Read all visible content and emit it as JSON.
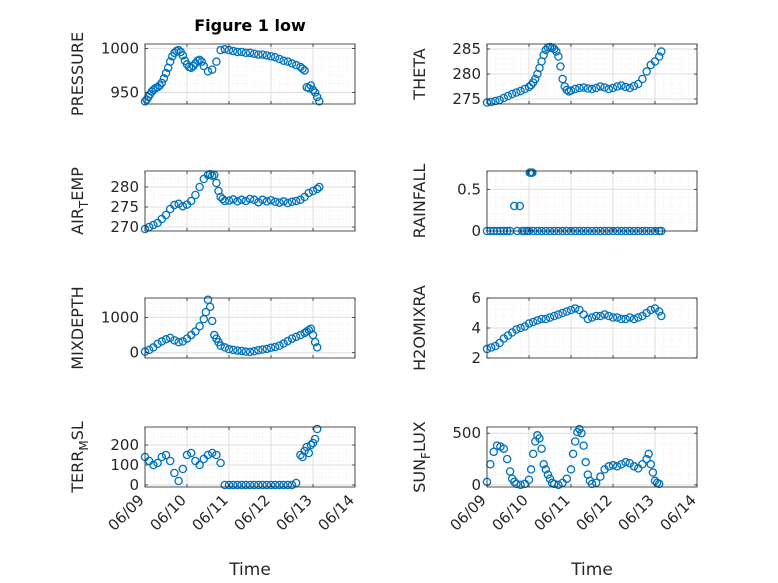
{
  "figure": {
    "title": "Figure 1 low",
    "xlabel": "Time"
  },
  "colors": {
    "marker": "#0072bd",
    "axis": "#262626",
    "grid": "#dfdfdf",
    "minor_grid": "#ececec"
  },
  "chart_data": [
    {
      "type": "scatter",
      "ylabel": "PRESSURE",
      "ylim": [
        937,
        1005
      ],
      "yticks": [
        950,
        1000
      ],
      "ytick_labels": [
        "950",
        "1000"
      ],
      "x_dates": [
        "06/09",
        "06/10",
        "06/11",
        "06/12",
        "06/13",
        "06/14"
      ],
      "xticks": [
        0,
        1,
        2,
        3,
        4,
        5
      ],
      "grid": true,
      "x": [
        0.0,
        0.04,
        0.08,
        0.12,
        0.16,
        0.2,
        0.25,
        0.3,
        0.35,
        0.4,
        0.45,
        0.5,
        0.55,
        0.6,
        0.65,
        0.7,
        0.75,
        0.8,
        0.85,
        0.9,
        0.95,
        1.0,
        1.05,
        1.1,
        1.15,
        1.2,
        1.25,
        1.3,
        1.35,
        1.4,
        1.5,
        1.6,
        1.7,
        1.8,
        1.9,
        2.0,
        2.1,
        2.2,
        2.3,
        2.4,
        2.5,
        2.6,
        2.7,
        2.8,
        2.9,
        3.0,
        3.1,
        3.2,
        3.3,
        3.4,
        3.5,
        3.6,
        3.7,
        3.75,
        3.8,
        3.85,
        3.9,
        3.95,
        4.0,
        4.05,
        4.1,
        4.15
      ],
      "y": [
        940,
        942,
        945,
        948,
        951,
        953,
        955,
        956,
        958,
        961,
        966,
        972,
        978,
        985,
        991,
        995,
        997,
        998,
        996,
        992,
        986,
        982,
        979,
        978,
        980,
        983,
        986,
        987,
        985,
        980,
        974,
        976,
        985,
        998,
        999,
        998,
        997,
        996,
        996,
        995,
        995,
        994,
        993,
        993,
        992,
        991,
        990,
        988,
        986,
        985,
        983,
        981,
        979,
        977,
        975,
        956,
        955,
        958,
        953,
        950,
        945,
        940
      ]
    },
    {
      "type": "scatter",
      "ylabel": "THETA",
      "ylim": [
        274,
        286
      ],
      "yticks": [
        275,
        280,
        285
      ],
      "ytick_labels": [
        "275",
        "280",
        "285"
      ],
      "x_dates": [
        "06/09",
        "06/10",
        "06/11",
        "06/12",
        "06/13",
        "06/14"
      ],
      "xticks": [
        0,
        1,
        2,
        3,
        4,
        5
      ],
      "grid": true,
      "x": [
        0.0,
        0.1,
        0.2,
        0.3,
        0.4,
        0.5,
        0.6,
        0.7,
        0.8,
        0.9,
        1.0,
        1.05,
        1.1,
        1.15,
        1.2,
        1.25,
        1.3,
        1.35,
        1.4,
        1.45,
        1.5,
        1.55,
        1.6,
        1.65,
        1.7,
        1.75,
        1.8,
        1.85,
        1.9,
        1.95,
        2.0,
        2.1,
        2.2,
        2.3,
        2.4,
        2.5,
        2.6,
        2.7,
        2.8,
        2.9,
        3.0,
        3.1,
        3.2,
        3.3,
        3.4,
        3.5,
        3.6,
        3.7,
        3.8,
        3.9,
        4.0,
        4.1,
        4.15
      ],
      "y": [
        274.3,
        274.4,
        274.6,
        274.8,
        275.2,
        275.6,
        276.0,
        276.3,
        276.6,
        277.0,
        277.4,
        277.8,
        278.3,
        279.0,
        280.0,
        281.2,
        282.5,
        283.8,
        284.8,
        285.3,
        285.4,
        285.2,
        285.0,
        284.5,
        283.5,
        281.5,
        279.0,
        277.5,
        276.8,
        276.5,
        276.7,
        277.0,
        277.2,
        277.3,
        277.1,
        277.0,
        277.2,
        277.5,
        277.3,
        277.0,
        277.2,
        277.5,
        277.7,
        277.4,
        277.2,
        277.6,
        278.0,
        279.0,
        280.5,
        281.8,
        282.5,
        283.5,
        284.5
      ]
    },
    {
      "type": "scatter",
      "ylabel": "AIR_TEMP",
      "ylabel_parts": [
        "AIR",
        "T",
        "EMP"
      ],
      "ylim": [
        269,
        284
      ],
      "yticks": [
        270,
        275,
        280
      ],
      "ytick_labels": [
        "270",
        "275",
        "280"
      ],
      "x_dates": [
        "06/09",
        "06/10",
        "06/11",
        "06/12",
        "06/13",
        "06/14"
      ],
      "xticks": [
        0,
        1,
        2,
        3,
        4,
        5
      ],
      "grid": true,
      "x": [
        0.0,
        0.1,
        0.2,
        0.3,
        0.4,
        0.5,
        0.6,
        0.7,
        0.8,
        0.9,
        1.0,
        1.1,
        1.2,
        1.3,
        1.4,
        1.5,
        1.55,
        1.6,
        1.65,
        1.7,
        1.75,
        1.8,
        1.85,
        1.9,
        2.0,
        2.1,
        2.2,
        2.3,
        2.4,
        2.5,
        2.6,
        2.7,
        2.8,
        2.9,
        3.0,
        3.1,
        3.2,
        3.3,
        3.4,
        3.5,
        3.6,
        3.7,
        3.8,
        3.9,
        4.0,
        4.1,
        4.15
      ],
      "y": [
        269.5,
        270.0,
        270.5,
        271.0,
        272.0,
        273.0,
        274.5,
        275.5,
        275.8,
        275.2,
        275.6,
        276.5,
        278.0,
        280.0,
        282.0,
        283.0,
        283.2,
        282.8,
        283.0,
        281.0,
        279.0,
        277.5,
        277.0,
        276.5,
        276.6,
        276.9,
        276.4,
        276.8,
        276.5,
        277.0,
        276.8,
        276.2,
        276.8,
        276.4,
        276.7,
        276.3,
        276.1,
        276.4,
        276.0,
        276.3,
        276.5,
        276.8,
        277.5,
        278.5,
        279.0,
        279.5,
        280.0
      ]
    },
    {
      "type": "scatter",
      "ylabel": "RAINFALL",
      "ylim": [
        0,
        0.72
      ],
      "yticks": [
        0,
        0.5
      ],
      "ytick_labels": [
        "0",
        "0.5"
      ],
      "x_dates": [
        "06/09",
        "06/10",
        "06/11",
        "06/12",
        "06/13",
        "06/14"
      ],
      "xticks": [
        0,
        1,
        2,
        3,
        4,
        5
      ],
      "grid": true,
      "x": [
        0.0,
        0.08,
        0.16,
        0.24,
        0.32,
        0.4,
        0.48,
        0.55,
        0.65,
        0.72,
        0.78,
        0.84,
        0.9,
        0.96,
        1.0,
        1.02,
        1.04,
        1.06,
        1.08,
        1.1,
        1.2,
        1.3,
        1.4,
        1.5,
        1.6,
        1.7,
        1.8,
        1.9,
        2.0,
        2.1,
        2.2,
        2.3,
        2.4,
        2.5,
        2.6,
        2.7,
        2.8,
        2.9,
        3.0,
        3.1,
        3.2,
        3.3,
        3.4,
        3.5,
        3.6,
        3.7,
        3.8,
        3.9,
        4.0,
        4.1,
        4.15
      ],
      "y": [
        0,
        0,
        0,
        0,
        0,
        0,
        0,
        0,
        0.3,
        0,
        0.3,
        0,
        0,
        0,
        0,
        0.7,
        0.7,
        0.7,
        0.7,
        0,
        0,
        0,
        0,
        0,
        0,
        0,
        0,
        0,
        0,
        0,
        0,
        0,
        0,
        0,
        0,
        0,
        0,
        0,
        0,
        0,
        0,
        0,
        0,
        0,
        0,
        0,
        0,
        0,
        0,
        0,
        0
      ]
    },
    {
      "type": "scatter",
      "ylabel": "MIXDEPTH",
      "ylim": [
        -150,
        1550
      ],
      "yticks": [
        0,
        1000
      ],
      "ytick_labels": [
        "0",
        "1000"
      ],
      "x_dates": [
        "06/09",
        "06/10",
        "06/11",
        "06/12",
        "06/13",
        "06/14"
      ],
      "xticks": [
        0,
        1,
        2,
        3,
        4,
        5
      ],
      "grid": true,
      "x": [
        0.0,
        0.1,
        0.2,
        0.3,
        0.4,
        0.5,
        0.6,
        0.7,
        0.8,
        0.9,
        1.0,
        1.1,
        1.2,
        1.3,
        1.4,
        1.45,
        1.5,
        1.55,
        1.6,
        1.65,
        1.7,
        1.75,
        1.8,
        1.9,
        2.0,
        2.1,
        2.2,
        2.3,
        2.4,
        2.5,
        2.6,
        2.7,
        2.8,
        2.9,
        3.0,
        3.1,
        3.2,
        3.3,
        3.4,
        3.5,
        3.6,
        3.7,
        3.8,
        3.85,
        3.9,
        3.95,
        4.0,
        4.05,
        4.1
      ],
      "y": [
        30,
        80,
        150,
        250,
        320,
        380,
        420,
        350,
        300,
        320,
        400,
        500,
        600,
        750,
        950,
        1150,
        1500,
        1300,
        900,
        500,
        400,
        300,
        200,
        150,
        100,
        80,
        60,
        50,
        30,
        20,
        40,
        70,
        90,
        110,
        140,
        160,
        200,
        260,
        330,
        400,
        450,
        500,
        560,
        600,
        640,
        680,
        500,
        300,
        150
      ]
    },
    {
      "type": "scatter",
      "ylabel": "H2OMIXRA",
      "ylim": [
        2,
        6
      ],
      "yticks": [
        2,
        4,
        6
      ],
      "ytick_labels": [
        "2",
        "4",
        "6"
      ],
      "x_dates": [
        "06/09",
        "06/10",
        "06/11",
        "06/12",
        "06/13",
        "06/14"
      ],
      "xticks": [
        0,
        1,
        2,
        3,
        4,
        5
      ],
      "grid": true,
      "x": [
        0.0,
        0.1,
        0.2,
        0.3,
        0.4,
        0.5,
        0.6,
        0.7,
        0.8,
        0.9,
        1.0,
        1.1,
        1.2,
        1.3,
        1.4,
        1.5,
        1.6,
        1.7,
        1.8,
        1.9,
        2.0,
        2.1,
        2.2,
        2.3,
        2.4,
        2.5,
        2.6,
        2.7,
        2.8,
        2.9,
        3.0,
        3.1,
        3.2,
        3.3,
        3.4,
        3.5,
        3.6,
        3.7,
        3.8,
        3.9,
        4.0,
        4.1,
        4.15
      ],
      "y": [
        2.6,
        2.7,
        2.8,
        3.0,
        3.3,
        3.5,
        3.7,
        3.9,
        4.0,
        4.1,
        4.3,
        4.4,
        4.5,
        4.6,
        4.6,
        4.7,
        4.8,
        4.9,
        5.0,
        5.1,
        5.2,
        5.3,
        5.2,
        4.9,
        4.6,
        4.7,
        4.8,
        4.8,
        4.9,
        4.8,
        4.7,
        4.7,
        4.6,
        4.6,
        4.7,
        4.6,
        4.7,
        4.8,
        5.0,
        5.2,
        5.3,
        5.1,
        4.8
      ]
    },
    {
      "type": "scatter",
      "ylabel": "TERR_MSL",
      "ylabel_parts": [
        "TERR",
        "M",
        "SL"
      ],
      "ylim": [
        -10,
        290
      ],
      "yticks": [
        0,
        100,
        200
      ],
      "ytick_labels": [
        "0",
        "100",
        "200"
      ],
      "x_dates": [
        "06/09",
        "06/10",
        "06/11",
        "06/12",
        "06/13",
        "06/14"
      ],
      "xticks": [
        0,
        1,
        2,
        3,
        4,
        5
      ],
      "grid": true,
      "x": [
        0.0,
        0.1,
        0.2,
        0.3,
        0.4,
        0.5,
        0.6,
        0.7,
        0.8,
        0.9,
        1.0,
        1.1,
        1.2,
        1.3,
        1.4,
        1.5,
        1.6,
        1.7,
        1.8,
        1.9,
        2.0,
        2.1,
        2.2,
        2.3,
        2.4,
        2.5,
        2.6,
        2.7,
        2.8,
        2.9,
        3.0,
        3.1,
        3.2,
        3.3,
        3.4,
        3.5,
        3.6,
        3.7,
        3.75,
        3.8,
        3.85,
        3.9,
        3.95,
        4.0,
        4.05,
        4.1
      ],
      "y": [
        140,
        120,
        100,
        110,
        140,
        150,
        120,
        60,
        20,
        80,
        150,
        160,
        120,
        100,
        130,
        150,
        160,
        150,
        110,
        0,
        0,
        0,
        0,
        0,
        0,
        0,
        0,
        0,
        0,
        0,
        0,
        0,
        0,
        0,
        0,
        0,
        10,
        150,
        140,
        170,
        190,
        160,
        200,
        210,
        230,
        280
      ]
    },
    {
      "type": "scatter",
      "ylabel": "SUN_FLUX",
      "ylabel_parts": [
        "SUN",
        "F",
        "LUX"
      ],
      "ylim": [
        -20,
        560
      ],
      "yticks": [
        0,
        500
      ],
      "ytick_labels": [
        "0",
        "500"
      ],
      "x_dates": [
        "06/09",
        "06/10",
        "06/11",
        "06/12",
        "06/13",
        "06/14"
      ],
      "xticks": [
        0,
        1,
        2,
        3,
        4,
        5
      ],
      "grid": true,
      "x": [
        0.0,
        0.08,
        0.16,
        0.24,
        0.32,
        0.4,
        0.48,
        0.55,
        0.6,
        0.65,
        0.7,
        0.8,
        0.9,
        1.0,
        1.05,
        1.1,
        1.15,
        1.2,
        1.25,
        1.3,
        1.35,
        1.4,
        1.45,
        1.5,
        1.55,
        1.6,
        1.7,
        1.8,
        1.9,
        2.0,
        2.05,
        2.1,
        2.15,
        2.2,
        2.25,
        2.3,
        2.35,
        2.4,
        2.45,
        2.5,
        2.6,
        2.7,
        2.8,
        2.9,
        3.0,
        3.1,
        3.2,
        3.3,
        3.4,
        3.5,
        3.6,
        3.7,
        3.8,
        3.85,
        3.9,
        3.95,
        4.0,
        4.05,
        4.1
      ],
      "y": [
        30,
        200,
        320,
        380,
        370,
        350,
        250,
        130,
        60,
        30,
        10,
        0,
        10,
        50,
        150,
        300,
        420,
        480,
        450,
        350,
        200,
        150,
        100,
        60,
        20,
        10,
        0,
        20,
        60,
        150,
        300,
        420,
        510,
        540,
        500,
        380,
        220,
        100,
        40,
        10,
        20,
        80,
        150,
        180,
        190,
        180,
        200,
        220,
        210,
        180,
        160,
        200,
        250,
        300,
        200,
        120,
        40,
        20,
        10
      ]
    }
  ]
}
